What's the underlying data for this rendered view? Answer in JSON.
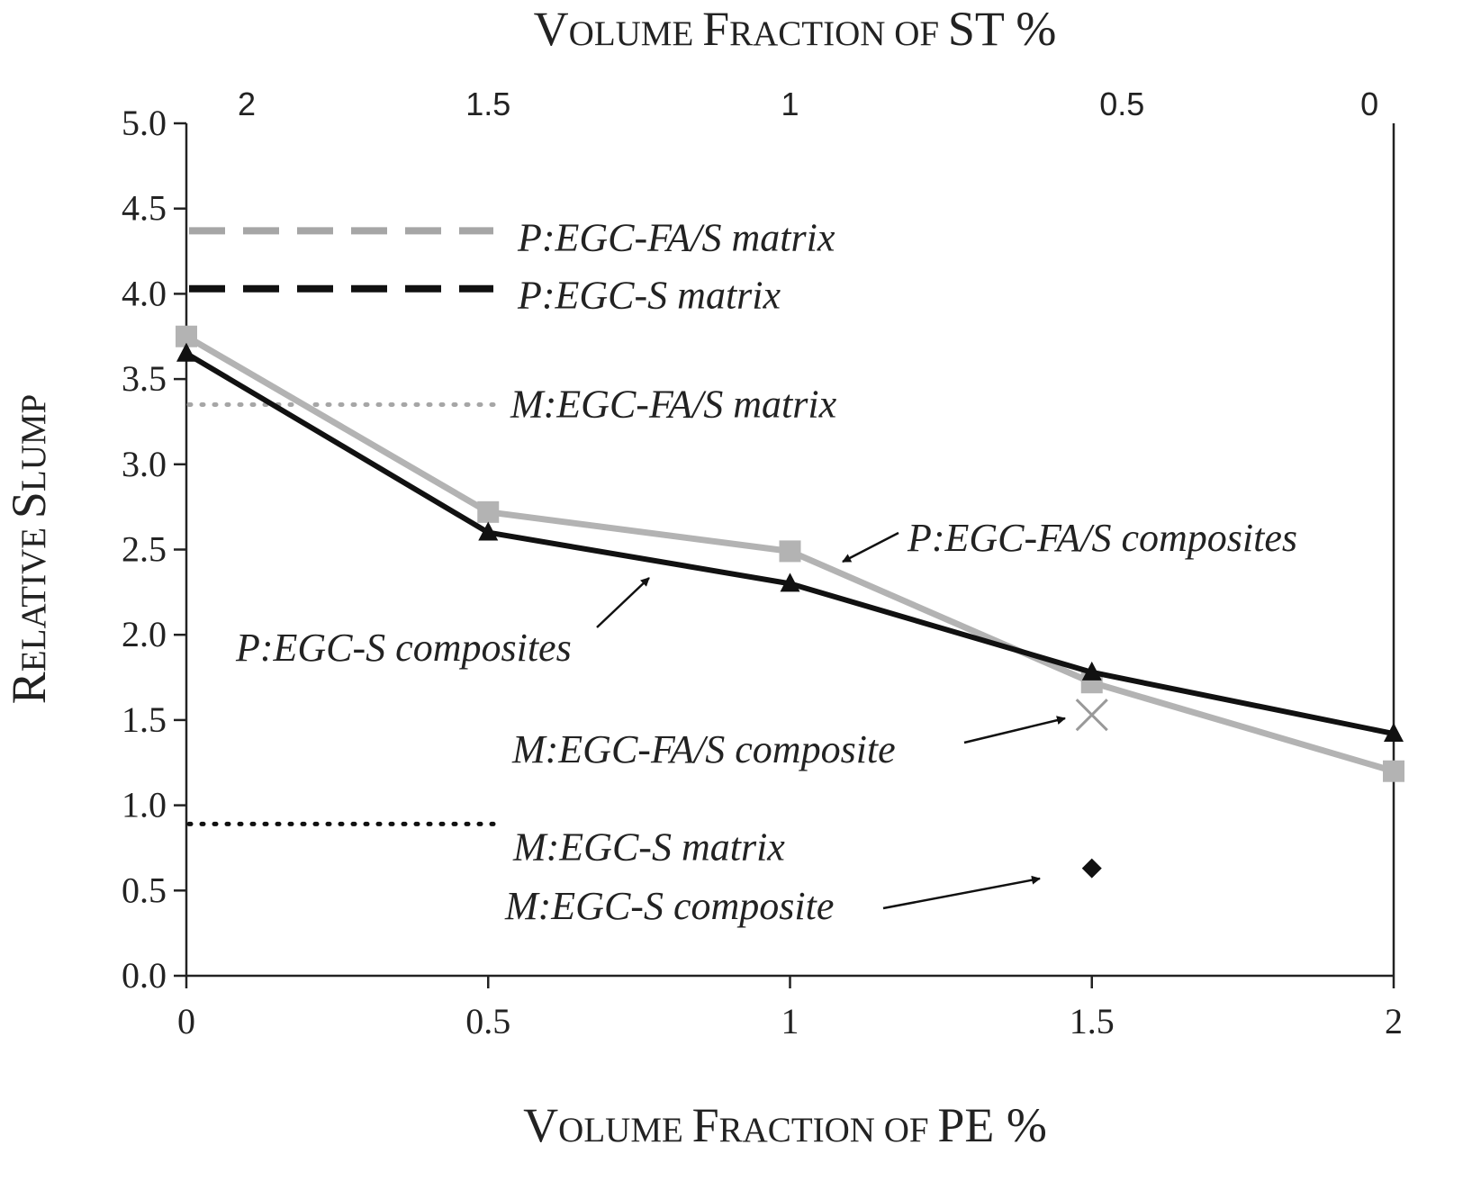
{
  "chart_data": {
    "type": "line",
    "title": "",
    "top_axis": {
      "label_parts": [
        {
          "text": "V",
          "small": false
        },
        {
          "text": "OLUME",
          "small": true
        },
        {
          "text": "  ",
          "small": true
        },
        {
          "text": "F",
          "small": false
        },
        {
          "text": "RACTION",
          "small": true
        },
        {
          "text": " OF ",
          "small": true
        },
        {
          "text": "ST %",
          "small": false
        }
      ],
      "ticks": [
        {
          "label": "2",
          "at_pe": 0.1
        },
        {
          "label": "1.5",
          "at_pe": 0.5
        },
        {
          "label": "1",
          "at_pe": 1.0
        },
        {
          "label": "0.5",
          "at_pe": 1.55
        },
        {
          "label": "0",
          "at_pe": 1.96
        }
      ]
    },
    "x_axis": {
      "label_parts": [
        {
          "text": "V",
          "small": false
        },
        {
          "text": "OLUME",
          "small": true
        },
        {
          "text": " ",
          "small": true
        },
        {
          "text": "F",
          "small": false
        },
        {
          "text": "RACTION",
          "small": true
        },
        {
          "text": " OF ",
          "small": true
        },
        {
          "text": "PE %",
          "small": false
        }
      ],
      "range": [
        0,
        2
      ],
      "ticks": [
        0,
        0.5,
        1,
        1.5,
        2
      ],
      "tick_labels": [
        "0",
        "0.5",
        "1",
        "1.5",
        "2"
      ]
    },
    "y_axis": {
      "label_parts": [
        {
          "text": "R",
          "small": false
        },
        {
          "text": "ELATIVE",
          "small": true
        },
        {
          "text": "  ",
          "small": true
        },
        {
          "text": "S",
          "small": false
        },
        {
          "text": "LUMP",
          "small": true
        }
      ],
      "range": [
        0,
        5
      ],
      "ticks": [
        0,
        0.5,
        1,
        1.5,
        2,
        2.5,
        3,
        3.5,
        4,
        4.5,
        5
      ],
      "tick_labels": [
        "0.0",
        "0.5",
        "1.0",
        "1.5",
        "2.0",
        "2.5",
        "3.0",
        "3.5",
        "4.0",
        "4.5",
        "5.0"
      ]
    },
    "series": [
      {
        "label": "P:EGC-FA/S composites",
        "color": "#b3b3b3",
        "marker": "square",
        "x": [
          0,
          0.5,
          1,
          1.5,
          2
        ],
        "y": [
          3.75,
          2.72,
          2.49,
          1.72,
          1.2
        ]
      },
      {
        "label": "P:EGC-S composites",
        "color": "#111111",
        "marker": "triangle",
        "x": [
          0,
          0.5,
          1,
          1.5,
          2
        ],
        "y": [
          3.65,
          2.6,
          2.3,
          1.78,
          1.42
        ]
      }
    ],
    "points": [
      {
        "label": "M:EGC-FA/S composite",
        "x": 1.5,
        "y": 1.53,
        "marker": "x",
        "color": "#999999"
      },
      {
        "label": "M:EGC-S composite",
        "x": 1.5,
        "y": 0.63,
        "marker": "diamond",
        "color": "#111111"
      }
    ],
    "reference_lines": [
      {
        "label": "P:EGC-FA/S matrix",
        "y": 4.37,
        "style": "dashed",
        "color": "#a6a6a6"
      },
      {
        "label": "P:EGC-S matrix",
        "y": 4.03,
        "style": "dashed",
        "color": "#111111"
      },
      {
        "label": "M:EGC-FA/S matrix",
        "y": 3.35,
        "style": "dotted",
        "color": "#a6a6a6"
      },
      {
        "label": "M:EGC-S matrix",
        "y": 0.89,
        "style": "dotted",
        "color": "#111111"
      }
    ],
    "annotations": [
      {
        "text": "P:EGC-FA/S composites",
        "arrow": true
      },
      {
        "text": "P:EGC-S composites",
        "arrow": true
      },
      {
        "text": "M:EGC-FA/S composite",
        "arrow": true
      },
      {
        "text": "M:EGC-S composite",
        "arrow": true
      }
    ],
    "grid": false
  }
}
